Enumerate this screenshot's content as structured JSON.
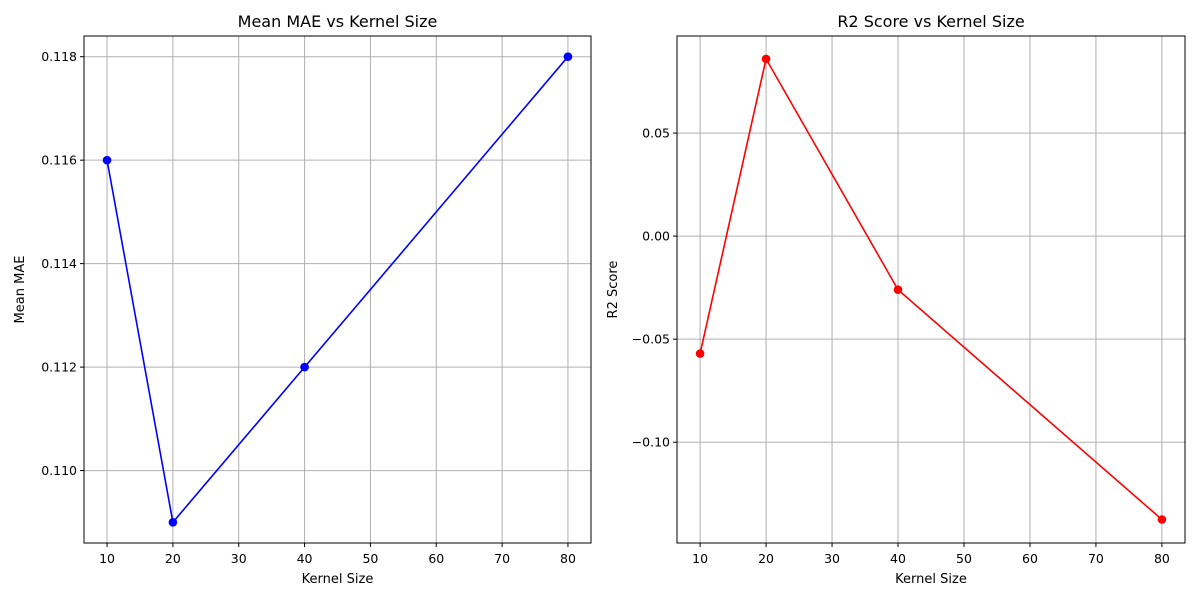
{
  "chart_data": [
    {
      "type": "line",
      "title": "Mean MAE vs Kernel Size",
      "xlabel": "Kernel Size",
      "ylabel": "Mean MAE",
      "x": [
        10,
        20,
        40,
        80
      ],
      "series": [
        {
          "values": [
            0.116,
            0.109,
            0.112,
            0.118
          ],
          "color": "#0000ff",
          "marker": "circle"
        }
      ],
      "xlim": [
        6.5,
        83.5
      ],
      "ylim": [
        0.1086,
        0.1184
      ],
      "xticks": [
        10,
        20,
        30,
        40,
        50,
        60,
        70,
        80
      ],
      "xtick_labels": [
        "10",
        "20",
        "30",
        "40",
        "50",
        "60",
        "70",
        "80"
      ],
      "yticks": [
        0.11,
        0.112,
        0.114,
        0.116,
        0.118
      ],
      "ytick_labels": [
        "0.110",
        "0.112",
        "0.114",
        "0.116",
        "0.118"
      ],
      "grid": true
    },
    {
      "type": "line",
      "title": "R2 Score vs Kernel Size",
      "xlabel": "Kernel Size",
      "ylabel": "R2 Score",
      "x": [
        10,
        20,
        40,
        80
      ],
      "series": [
        {
          "values": [
            -0.057,
            0.086,
            -0.026,
            -0.1375
          ],
          "color": "#ff0000",
          "marker": "circle"
        }
      ],
      "xlim": [
        6.5,
        83.5
      ],
      "ylim": [
        -0.1489,
        0.0971
      ],
      "xticks": [
        10,
        20,
        30,
        40,
        50,
        60,
        70,
        80
      ],
      "xtick_labels": [
        "10",
        "20",
        "30",
        "40",
        "50",
        "60",
        "70",
        "80"
      ],
      "yticks": [
        -0.1,
        -0.05,
        0.0,
        0.05
      ],
      "ytick_labels": [
        "−0.10",
        "−0.05",
        "0.00",
        "0.05"
      ],
      "grid": true
    }
  ]
}
